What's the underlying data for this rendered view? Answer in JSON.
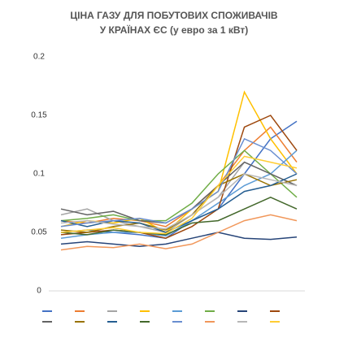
{
  "chart_data": {
    "type": "line",
    "title": [
      "ЦІНА ГАЗУ ДЛЯ ПОБУТОВИХ СПОЖИВАЧІВ",
      "У КРАЇНАХ ЄС (у евро за 1 кВт)"
    ],
    "categories": [
      null,
      null,
      null,
      null,
      null,
      null,
      null,
      null,
      null,
      null
    ],
    "ylim": [
      0,
      0.2
    ],
    "yticks": [
      0,
      0.05,
      0.1,
      0.15,
      0.2
    ],
    "grid": false,
    "series": [
      {
        "color": "#4472c4",
        "values": [
          0.05,
          0.052,
          0.05,
          0.048,
          0.045,
          0.06,
          0.07,
          0.1,
          0.13,
          0.145
        ]
      },
      {
        "color": "#ed7d31",
        "values": [
          0.06,
          0.058,
          0.062,
          0.06,
          0.055,
          0.07,
          0.09,
          0.12,
          0.14,
          0.11
        ]
      },
      {
        "color": "#a5a5a5",
        "values": [
          0.065,
          0.07,
          0.06,
          0.055,
          0.05,
          0.065,
          0.08,
          0.11,
          0.1,
          0.09
        ]
      },
      {
        "color": "#ffc000",
        "values": [
          0.055,
          0.06,
          0.058,
          0.062,
          0.05,
          0.07,
          0.085,
          0.17,
          0.13,
          0.1
        ]
      },
      {
        "color": "#5b9bd5",
        "values": [
          0.045,
          0.048,
          0.05,
          0.05,
          0.047,
          0.06,
          0.075,
          0.09,
          0.1,
          0.12
        ]
      },
      {
        "color": "#70ad47",
        "values": [
          0.06,
          0.062,
          0.065,
          0.06,
          0.06,
          0.075,
          0.1,
          0.12,
          0.1,
          0.08
        ]
      },
      {
        "color": "#264478",
        "values": [
          0.04,
          0.042,
          0.04,
          0.038,
          0.04,
          0.045,
          0.05,
          0.045,
          0.044,
          0.046
        ]
      },
      {
        "color": "#9e480e",
        "values": [
          0.048,
          0.05,
          0.052,
          0.05,
          0.045,
          0.055,
          0.07,
          0.14,
          0.15,
          0.12
        ]
      },
      {
        "color": "#636363",
        "values": [
          0.07,
          0.065,
          0.068,
          0.06,
          0.058,
          0.07,
          0.09,
          0.11,
          0.1,
          0.09
        ]
      },
      {
        "color": "#997300",
        "values": [
          0.052,
          0.05,
          0.055,
          0.058,
          0.052,
          0.065,
          0.09,
          0.1,
          0.09,
          0.095
        ]
      },
      {
        "color": "#255e91",
        "values": [
          0.06,
          0.055,
          0.06,
          0.058,
          0.05,
          0.06,
          0.07,
          0.085,
          0.09,
          0.1
        ]
      },
      {
        "color": "#43682b",
        "values": [
          0.05,
          0.048,
          0.052,
          0.05,
          0.048,
          0.058,
          0.06,
          0.07,
          0.08,
          0.07
        ]
      },
      {
        "color": "#698ed0",
        "values": [
          0.055,
          0.058,
          0.06,
          0.062,
          0.058,
          0.07,
          0.085,
          0.13,
          0.12,
          0.1
        ]
      },
      {
        "color": "#f1975a",
        "values": [
          0.035,
          0.038,
          0.037,
          0.04,
          0.036,
          0.04,
          0.05,
          0.06,
          0.065,
          0.06
        ]
      },
      {
        "color": "#b7b7b7",
        "values": [
          0.058,
          0.06,
          0.057,
          0.055,
          0.053,
          0.065,
          0.08,
          0.1,
          0.095,
          0.09
        ]
      },
      {
        "color": "#ffcd33",
        "values": [
          0.05,
          0.052,
          0.054,
          0.05,
          0.049,
          0.062,
          0.09,
          0.115,
          0.11,
          0.105
        ]
      }
    ]
  }
}
